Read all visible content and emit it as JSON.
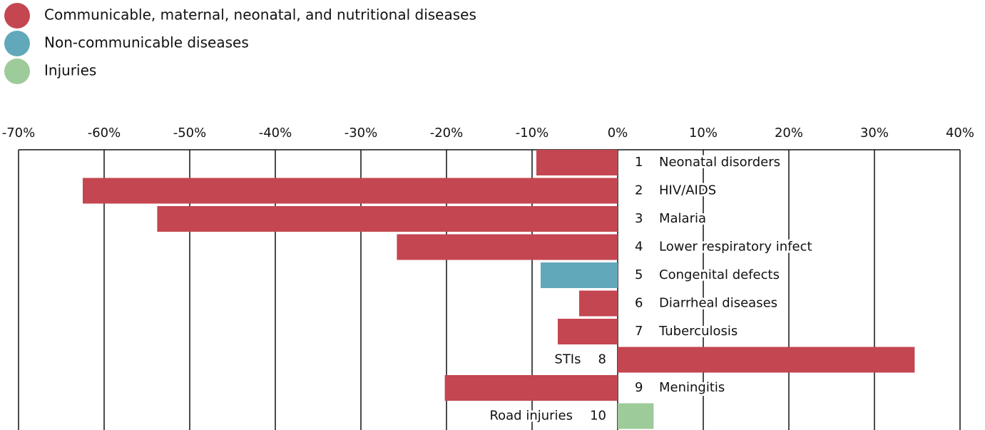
{
  "chart_data": {
    "type": "bar",
    "orientation": "horizontal",
    "legend": [
      {
        "name": "Communicable, maternal, neonatal, and nutritional diseases",
        "color": "#c44650"
      },
      {
        "name": "Non-communicable diseases",
        "color": "#62a8bb"
      },
      {
        "name": "Injuries",
        "color": "#9dcb9a"
      }
    ],
    "ranks": [
      1,
      2,
      3,
      4,
      5,
      6,
      7,
      8,
      9,
      10
    ],
    "categories": [
      "Neonatal disorders",
      "HIV/AIDS",
      "Malaria",
      "Lower respiratory infect",
      "Congenital defects",
      "Diarrheal diseases",
      "Tuberculosis",
      "STIs",
      "Meningitis",
      "Road injuries"
    ],
    "values": [
      -9.5,
      -62.5,
      -53.8,
      -25.8,
      -9.0,
      -4.5,
      -7.0,
      34.7,
      -20.2,
      4.2
    ],
    "colors": [
      "#c44650",
      "#c44650",
      "#c44650",
      "#c44650",
      "#62a8bb",
      "#c44650",
      "#c44650",
      "#c44650",
      "#c44650",
      "#9dcb9a"
    ],
    "xlim": [
      -70,
      40
    ],
    "xticks": [
      {
        "value": -70,
        "label": "-70%"
      },
      {
        "value": -60,
        "label": "-60%"
      },
      {
        "value": -50,
        "label": "-50%"
      },
      {
        "value": -40,
        "label": "-40%"
      },
      {
        "value": -30,
        "label": "-30%"
      },
      {
        "value": -20,
        "label": "-20%"
      },
      {
        "value": -10,
        "label": "-10%"
      },
      {
        "value": 0,
        "label": "0%"
      },
      {
        "value": 10,
        "label": "10%"
      },
      {
        "value": 20,
        "label": "20%"
      },
      {
        "value": 30,
        "label": "30%"
      },
      {
        "value": 40,
        "label": "40%"
      }
    ],
    "grid": true
  }
}
